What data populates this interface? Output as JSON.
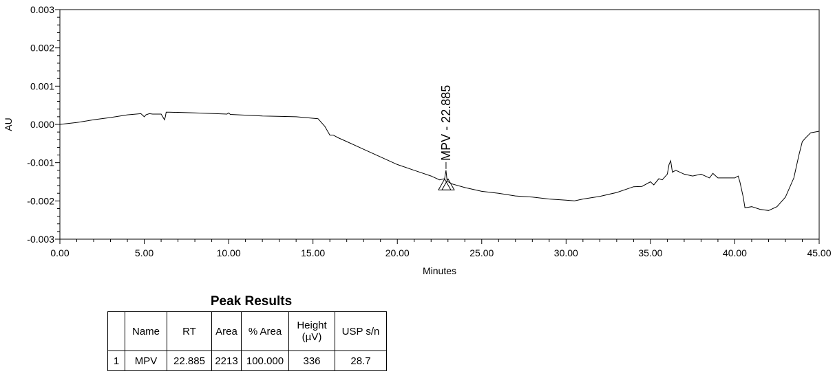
{
  "chart_data": {
    "type": "line",
    "title": "",
    "xlabel": "Minutes",
    "ylabel": "AU",
    "xlim": [
      0,
      45
    ],
    "ylim": [
      -0.003,
      0.003
    ],
    "x_ticks": [
      "0.00",
      "5.00",
      "10.00",
      "15.00",
      "20.00",
      "25.00",
      "30.00",
      "35.00",
      "40.00",
      "45.00"
    ],
    "x_tick_values": [
      0,
      5,
      10,
      15,
      20,
      25,
      30,
      35,
      40,
      45
    ],
    "y_ticks": [
      "0.003",
      "0.002",
      "0.001",
      "0.000",
      "-0.001",
      "-0.002",
      "-0.003"
    ],
    "y_tick_values": [
      0.003,
      0.002,
      0.001,
      0,
      -0.001,
      -0.002,
      -0.003
    ],
    "line_color": "#000000",
    "series": [
      {
        "x": [
          0,
          1,
          2,
          3,
          4,
          4.8,
          5.0,
          5.1,
          5.3,
          5.5,
          6.0,
          6.2,
          6.25,
          6.3,
          6.5,
          8,
          9.9,
          10.0,
          10.1,
          12,
          14,
          15.3,
          15.7,
          16.0,
          16.2,
          16.5,
          17,
          18,
          19,
          20,
          21,
          22,
          22.5,
          22.8,
          22.885,
          22.95,
          23.2,
          24,
          25,
          26,
          27,
          28,
          29,
          30,
          30.5,
          31,
          32,
          33,
          34,
          34.5,
          35,
          35.2,
          35.5,
          35.7,
          36,
          36.1,
          36.2,
          36.3,
          36.5,
          37,
          37.5,
          38,
          38.5,
          38.7,
          39,
          39.5,
          40,
          40.2,
          40.3,
          40.5,
          40.6,
          41,
          41.5,
          42,
          42.5,
          43,
          43.5,
          43.8,
          44,
          44.2,
          44.5,
          45
        ],
        "y": [
          0.0,
          5e-05,
          0.00012,
          0.00018,
          0.00025,
          0.00028,
          0.0002,
          0.00025,
          0.00028,
          0.00027,
          0.00027,
          0.00012,
          0.0002,
          0.00032,
          0.00032,
          0.0003,
          0.00027,
          0.0003,
          0.00026,
          0.00022,
          0.0002,
          0.00015,
          -5e-05,
          -0.00028,
          -0.00028,
          -0.00035,
          -0.00045,
          -0.00065,
          -0.00085,
          -0.00105,
          -0.0012,
          -0.00135,
          -0.00145,
          -0.00142,
          -0.0012,
          -0.00148,
          -0.00155,
          -0.00165,
          -0.00175,
          -0.0018,
          -0.00187,
          -0.0019,
          -0.00195,
          -0.00198,
          -0.002,
          -0.00195,
          -0.00188,
          -0.00178,
          -0.00163,
          -0.00162,
          -0.0015,
          -0.00158,
          -0.00142,
          -0.00145,
          -0.0013,
          -0.00105,
          -0.00095,
          -0.00125,
          -0.0012,
          -0.0013,
          -0.00135,
          -0.0013,
          -0.0014,
          -0.00128,
          -0.0014,
          -0.0014,
          -0.0014,
          -0.00135,
          -0.0015,
          -0.0019,
          -0.00218,
          -0.00215,
          -0.00222,
          -0.00225,
          -0.00215,
          -0.0019,
          -0.0014,
          -0.0008,
          -0.00045,
          -0.00035,
          -0.00022,
          -0.00018
        ]
      }
    ],
    "annotation": {
      "text": "MPV - 22.885",
      "x": 22.885,
      "y": -0.0012
    }
  },
  "peak_results": {
    "title": "Peak Results",
    "headers": [
      "",
      "Name",
      "RT",
      "Area",
      "% Area",
      "Height (µV)",
      "USP s/n"
    ],
    "header_height_line1": "Height",
    "header_height_line2": "(µV)",
    "rows": [
      [
        "1",
        "MPV",
        "22.885",
        "2213",
        "100.000",
        "336",
        "28.7"
      ]
    ]
  }
}
